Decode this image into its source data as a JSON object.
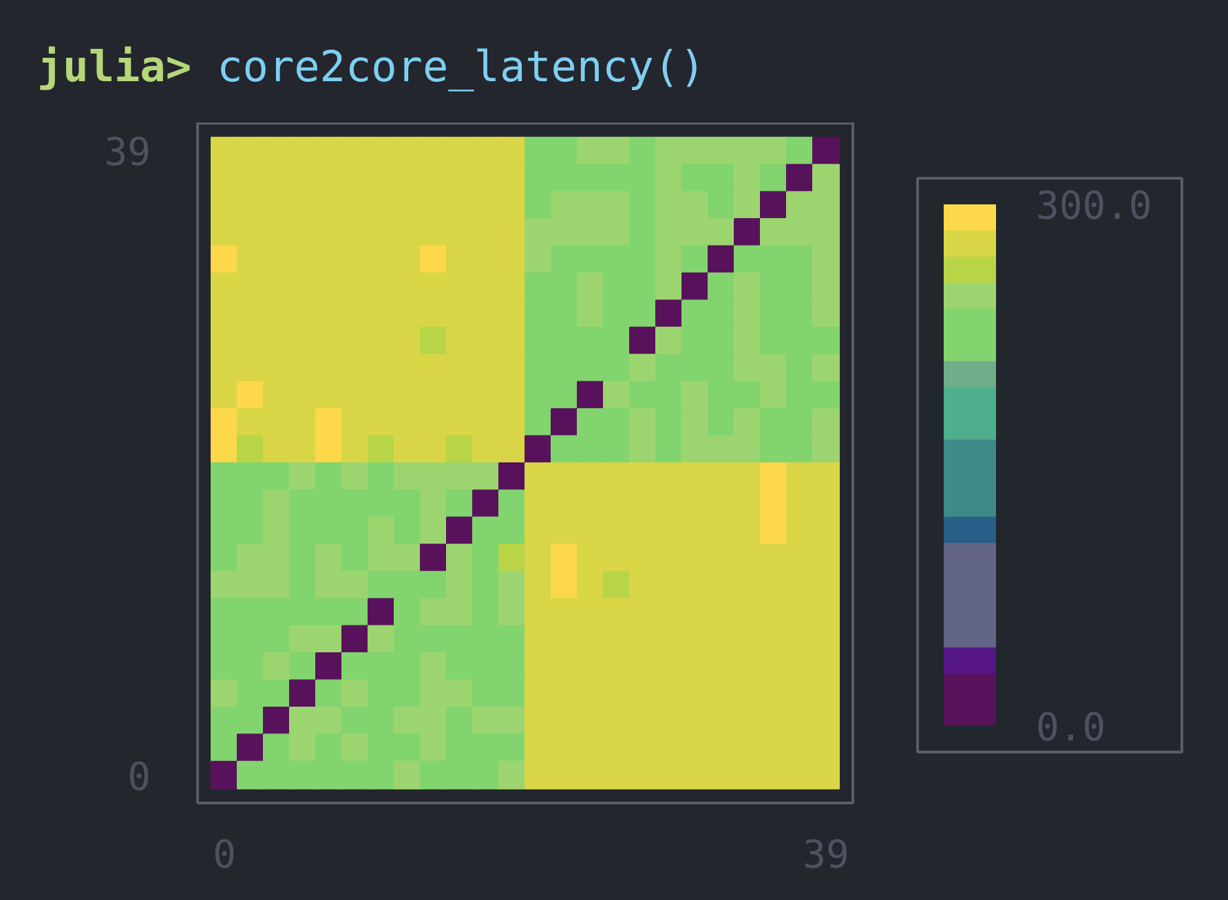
{
  "chart_data": {
    "type": "heatmap",
    "title": "julia> core2core_latency()",
    "categories": [
      "0",
      null,
      null,
      null,
      null,
      null,
      null,
      null,
      null,
      null,
      null,
      null,
      null,
      null,
      null,
      null,
      null,
      null,
      null,
      null,
      null,
      null,
      null,
      "39"
    ],
    "y_categories": [
      "39",
      null,
      null,
      null,
      null,
      null,
      null,
      null,
      null,
      null,
      null,
      null,
      null,
      null,
      null,
      null,
      null,
      null,
      null,
      null,
      null,
      null,
      null,
      "0"
    ],
    "clim": [
      0,
      300
    ],
    "cticks": [
      {
        "value": 0,
        "label": "0.0"
      },
      {
        "value": 300,
        "label": "300.0"
      }
    ],
    "cells": [
      [
        278,
        278,
        278,
        278,
        278,
        278,
        278,
        278,
        278,
        278,
        278,
        278,
        220,
        220,
        248,
        248,
        220,
        248,
        248,
        248,
        248,
        248,
        220,
        10
      ],
      [
        278,
        278,
        278,
        278,
        278,
        278,
        278,
        278,
        278,
        278,
        278,
        278,
        220,
        220,
        220,
        220,
        220,
        248,
        220,
        220,
        248,
        220,
        10,
        248
      ],
      [
        278,
        278,
        278,
        278,
        278,
        278,
        278,
        278,
        278,
        278,
        278,
        278,
        220,
        248,
        248,
        248,
        220,
        248,
        248,
        220,
        248,
        10,
        248,
        248
      ],
      [
        278,
        278,
        278,
        278,
        278,
        278,
        278,
        278,
        278,
        278,
        278,
        278,
        248,
        248,
        248,
        248,
        220,
        248,
        248,
        248,
        10,
        248,
        248,
        248
      ],
      [
        292,
        278,
        278,
        278,
        278,
        278,
        278,
        278,
        292,
        278,
        278,
        278,
        248,
        220,
        220,
        220,
        220,
        248,
        220,
        10,
        220,
        220,
        220,
        248
      ],
      [
        278,
        278,
        278,
        278,
        278,
        278,
        278,
        278,
        278,
        278,
        278,
        278,
        220,
        220,
        248,
        220,
        220,
        248,
        10,
        220,
        248,
        220,
        220,
        248
      ],
      [
        278,
        278,
        278,
        278,
        278,
        278,
        278,
        278,
        278,
        278,
        278,
        278,
        220,
        220,
        248,
        220,
        220,
        10,
        220,
        220,
        248,
        220,
        220,
        248
      ],
      [
        278,
        278,
        278,
        278,
        278,
        278,
        278,
        278,
        262,
        278,
        278,
        278,
        220,
        220,
        220,
        220,
        10,
        248,
        220,
        220,
        248,
        220,
        220,
        220
      ],
      [
        278,
        278,
        278,
        278,
        278,
        278,
        278,
        278,
        278,
        278,
        278,
        278,
        220,
        220,
        220,
        220,
        248,
        220,
        220,
        220,
        248,
        248,
        220,
        248
      ],
      [
        278,
        292,
        278,
        278,
        278,
        278,
        278,
        278,
        278,
        278,
        278,
        278,
        220,
        220,
        10,
        248,
        220,
        220,
        248,
        220,
        220,
        248,
        220,
        220
      ],
      [
        292,
        278,
        278,
        278,
        292,
        278,
        278,
        278,
        278,
        278,
        278,
        278,
        220,
        10,
        220,
        220,
        248,
        220,
        248,
        220,
        248,
        220,
        220,
        248
      ],
      [
        292,
        262,
        278,
        278,
        292,
        278,
        262,
        278,
        278,
        262,
        278,
        278,
        10,
        220,
        220,
        220,
        248,
        220,
        248,
        248,
        248,
        220,
        220,
        248
      ],
      [
        220,
        220,
        220,
        248,
        220,
        248,
        220,
        248,
        248,
        248,
        248,
        10,
        278,
        278,
        278,
        278,
        278,
        278,
        278,
        278,
        278,
        292,
        278,
        278
      ],
      [
        220,
        220,
        248,
        220,
        220,
        220,
        220,
        220,
        248,
        220,
        10,
        220,
        278,
        278,
        278,
        278,
        278,
        278,
        278,
        278,
        278,
        292,
        278,
        278
      ],
      [
        220,
        220,
        248,
        220,
        220,
        220,
        248,
        220,
        248,
        10,
        220,
        220,
        278,
        278,
        278,
        278,
        278,
        278,
        278,
        278,
        278,
        292,
        278,
        278
      ],
      [
        220,
        248,
        248,
        220,
        248,
        220,
        248,
        248,
        10,
        248,
        220,
        255,
        278,
        292,
        278,
        278,
        278,
        278,
        278,
        278,
        278,
        278,
        278,
        278
      ],
      [
        248,
        248,
        248,
        220,
        248,
        248,
        220,
        220,
        220,
        248,
        220,
        248,
        278,
        292,
        278,
        262,
        278,
        278,
        278,
        278,
        278,
        278,
        278,
        278
      ],
      [
        220,
        220,
        220,
        220,
        220,
        220,
        10,
        220,
        248,
        248,
        220,
        248,
        278,
        278,
        278,
        278,
        278,
        278,
        278,
        278,
        278,
        278,
        278,
        278
      ],
      [
        220,
        220,
        220,
        248,
        248,
        10,
        248,
        220,
        220,
        220,
        220,
        220,
        278,
        278,
        278,
        278,
        278,
        278,
        278,
        278,
        278,
        278,
        278,
        278
      ],
      [
        220,
        220,
        248,
        220,
        10,
        220,
        220,
        220,
        248,
        220,
        220,
        220,
        278,
        278,
        278,
        278,
        278,
        278,
        278,
        278,
        278,
        278,
        278,
        278
      ],
      [
        248,
        220,
        220,
        10,
        220,
        248,
        220,
        220,
        248,
        248,
        220,
        220,
        278,
        278,
        278,
        278,
        278,
        278,
        278,
        278,
        278,
        278,
        278,
        278
      ],
      [
        220,
        220,
        10,
        248,
        248,
        220,
        220,
        248,
        248,
        220,
        248,
        248,
        278,
        278,
        278,
        278,
        278,
        278,
        278,
        278,
        278,
        278,
        278,
        278
      ],
      [
        220,
        10,
        220,
        248,
        220,
        248,
        220,
        220,
        248,
        220,
        220,
        220,
        278,
        278,
        278,
        278,
        278,
        278,
        278,
        278,
        278,
        278,
        278,
        278
      ],
      [
        10,
        220,
        220,
        220,
        220,
        220,
        220,
        248,
        220,
        220,
        220,
        248,
        278,
        278,
        278,
        278,
        278,
        278,
        278,
        278,
        278,
        278,
        278,
        278
      ]
    ]
  }
}
